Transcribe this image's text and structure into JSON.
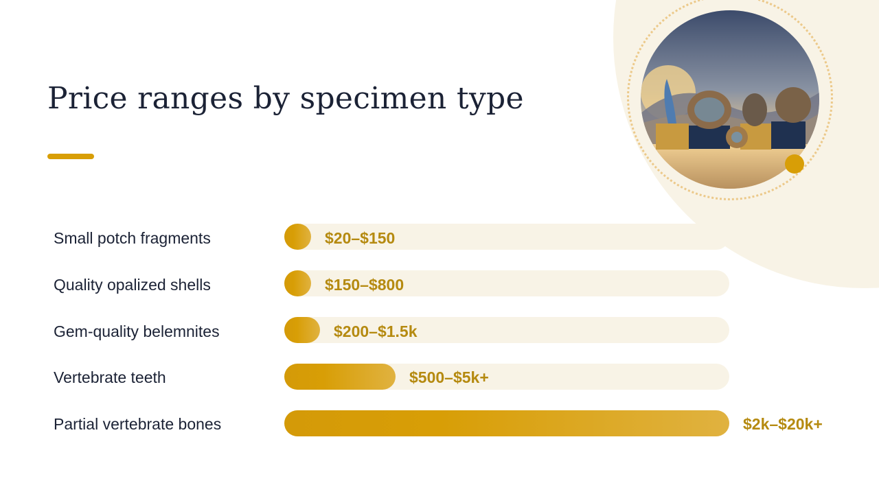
{
  "title": "Price ranges by specimen type",
  "colors": {
    "accent": "#d89e06",
    "track": "#f8f3e6",
    "text": "#1b2235",
    "range_text": "#b58a10"
  },
  "image": {
    "icon": "fossil-specimens-photo"
  },
  "chart_data": {
    "type": "bar",
    "orientation": "horizontal",
    "categories": [
      "Small potch fragments",
      "Quality opalized shells",
      "Gem-quality belemnites",
      "Vertebrate teeth",
      "Partial vertebrate bones"
    ],
    "range_labels": [
      "$20–$150",
      "$150–$800",
      "$200–$1.5k",
      "$500–$5k+",
      "$2k–$20k+"
    ],
    "values": [
      0.06,
      0.06,
      0.08,
      0.25,
      1.0
    ],
    "xlim": [
      0,
      1
    ],
    "grid": false,
    "legend": "none"
  }
}
